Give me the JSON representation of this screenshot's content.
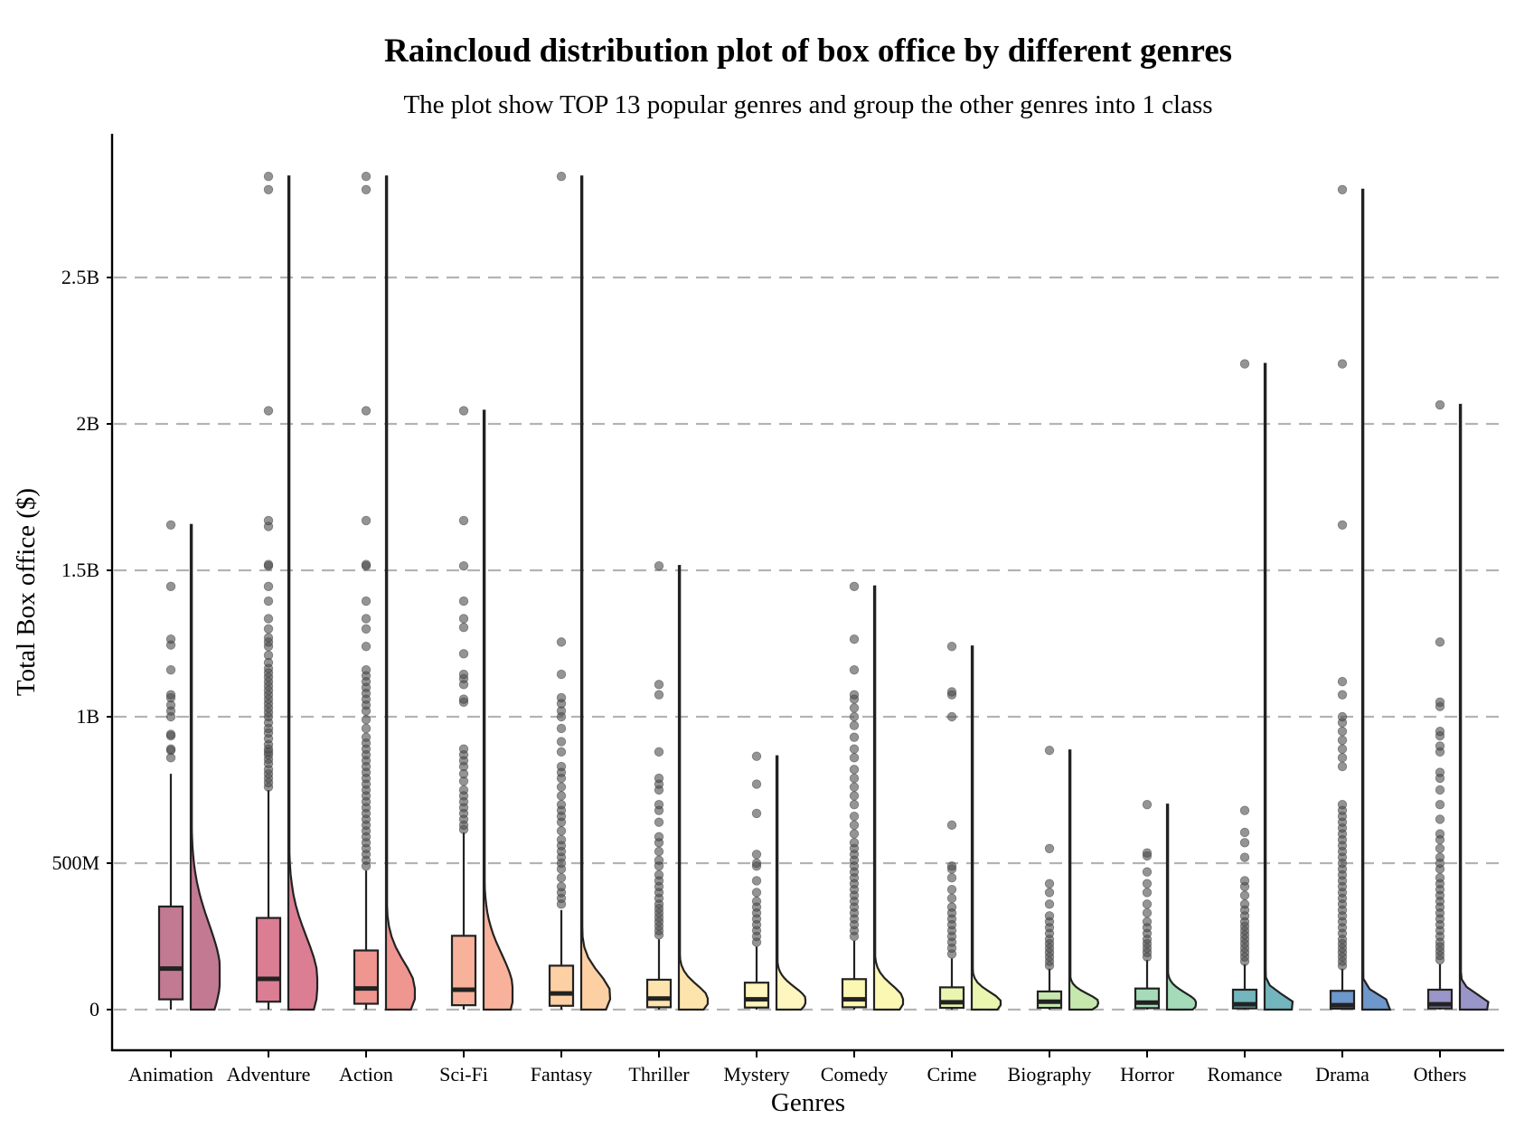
{
  "chart_data": {
    "type": "raincloud",
    "title": "Raincloud distribution plot of box office by different genres",
    "subtitle": "The plot show TOP 13 popular genres and group the other genres into 1 class",
    "xlabel": "Genres",
    "ylabel": "Total Box office ($)",
    "ylim": [
      -90000000,
      3000000000
    ],
    "y_ticks": [
      {
        "value": 0,
        "label": "0"
      },
      {
        "value": 500000000,
        "label": "500M"
      },
      {
        "value": 1000000000,
        "label": "1B"
      },
      {
        "value": 1500000000,
        "label": "1.5B"
      },
      {
        "value": 2000000000,
        "label": "2B"
      },
      {
        "value": 2500000000,
        "label": "2.5B"
      }
    ],
    "grid": "horizontal dashed",
    "legend": "none",
    "series": [
      {
        "name": "Animation",
        "color": "#c27a92",
        "box": {
          "q1": 35000000,
          "median": 140000000,
          "q3": 352000000,
          "whisker_low": 0,
          "whisker_high": 805000000
        },
        "max": 1655000000,
        "outliers": [
          860000000,
          885000000,
          890000000,
          935000000,
          940000000,
          1000000000,
          1020000000,
          1040000000,
          1065000000,
          1075000000,
          1160000000,
          1245000000,
          1265000000,
          1445000000,
          1655000000
        ]
      },
      {
        "name": "Adventure",
        "color": "#db7e93",
        "box": {
          "q1": 27000000,
          "median": 105000000,
          "q3": 313000000,
          "whisker_low": 0,
          "whisker_high": 750000000
        },
        "max": 2845000000,
        "outliers": [
          760000000,
          775000000,
          790000000,
          805000000,
          820000000,
          840000000,
          855000000,
          870000000,
          880000000,
          890000000,
          905000000,
          925000000,
          945000000,
          960000000,
          980000000,
          1000000000,
          1015000000,
          1030000000,
          1045000000,
          1060000000,
          1075000000,
          1090000000,
          1105000000,
          1120000000,
          1135000000,
          1150000000,
          1165000000,
          1185000000,
          1210000000,
          1240000000,
          1255000000,
          1270000000,
          1300000000,
          1335000000,
          1395000000,
          1445000000,
          1515000000,
          1520000000,
          1650000000,
          1670000000,
          2045000000,
          2800000000,
          2845000000
        ]
      },
      {
        "name": "Action",
        "color": "#ef9690",
        "box": {
          "q1": 20000000,
          "median": 72000000,
          "q3": 202000000,
          "whisker_low": 0,
          "whisker_high": 475000000
        },
        "max": 2845000000,
        "outliers": [
          490000000,
          510000000,
          530000000,
          550000000,
          570000000,
          590000000,
          610000000,
          630000000,
          650000000,
          670000000,
          690000000,
          710000000,
          730000000,
          750000000,
          770000000,
          790000000,
          810000000,
          830000000,
          850000000,
          870000000,
          890000000,
          910000000,
          930000000,
          960000000,
          990000000,
          1020000000,
          1040000000,
          1060000000,
          1080000000,
          1100000000,
          1120000000,
          1140000000,
          1160000000,
          1240000000,
          1300000000,
          1335000000,
          1395000000,
          1515000000,
          1520000000,
          1670000000,
          2045000000,
          2800000000,
          2845000000
        ]
      },
      {
        "name": "Sci-Fi",
        "color": "#f8b29c",
        "box": {
          "q1": 15000000,
          "median": 68000000,
          "q3": 252000000,
          "whisker_low": 0,
          "whisker_high": 605000000
        },
        "max": 2045000000,
        "outliers": [
          615000000,
          630000000,
          650000000,
          670000000,
          690000000,
          710000000,
          730000000,
          750000000,
          780000000,
          805000000,
          830000000,
          850000000,
          870000000,
          890000000,
          1050000000,
          1060000000,
          1110000000,
          1130000000,
          1145000000,
          1215000000,
          1305000000,
          1335000000,
          1395000000,
          1515000000,
          1670000000,
          2045000000
        ]
      },
      {
        "name": "Fantasy",
        "color": "#fdd0a3",
        "box": {
          "q1": 13000000,
          "median": 55000000,
          "q3": 150000000,
          "whisker_low": 0,
          "whisker_high": 340000000
        },
        "max": 2845000000,
        "outliers": [
          360000000,
          380000000,
          400000000,
          420000000,
          450000000,
          480000000,
          500000000,
          520000000,
          540000000,
          560000000,
          580000000,
          610000000,
          640000000,
          660000000,
          680000000,
          700000000,
          730000000,
          760000000,
          790000000,
          810000000,
          830000000,
          880000000,
          915000000,
          960000000,
          1000000000,
          1020000000,
          1045000000,
          1065000000,
          1145000000,
          1255000000,
          2845000000
        ]
      },
      {
        "name": "Thriller",
        "color": "#fde4ad",
        "box": {
          "q1": 8000000,
          "median": 38000000,
          "q3": 102000000,
          "whisker_low": 0,
          "whisker_high": 240000000
        },
        "max": 1515000000,
        "outliers": [
          255000000,
          270000000,
          285000000,
          300000000,
          315000000,
          330000000,
          345000000,
          360000000,
          380000000,
          400000000,
          420000000,
          440000000,
          460000000,
          490000000,
          510000000,
          540000000,
          570000000,
          590000000,
          640000000,
          680000000,
          700000000,
          750000000,
          770000000,
          790000000,
          880000000,
          1075000000,
          1110000000,
          1515000000
        ]
      },
      {
        "name": "Mystery",
        "color": "#fff5bf",
        "box": {
          "q1": 7000000,
          "median": 35000000,
          "q3": 92000000,
          "whisker_low": 0,
          "whisker_high": 215000000
        },
        "max": 865000000,
        "outliers": [
          230000000,
          250000000,
          270000000,
          290000000,
          310000000,
          330000000,
          350000000,
          370000000,
          400000000,
          440000000,
          490000000,
          500000000,
          530000000,
          670000000,
          770000000,
          865000000
        ]
      },
      {
        "name": "Comedy",
        "color": "#fbf8b4",
        "box": {
          "q1": 8000000,
          "median": 35000000,
          "q3": 104000000,
          "whisker_low": 0,
          "whisker_high": 235000000
        },
        "max": 1445000000,
        "outliers": [
          250000000,
          270000000,
          290000000,
          310000000,
          330000000,
          350000000,
          370000000,
          390000000,
          410000000,
          430000000,
          450000000,
          470000000,
          490000000,
          510000000,
          530000000,
          550000000,
          570000000,
          600000000,
          630000000,
          660000000,
          700000000,
          730000000,
          760000000,
          790000000,
          820000000,
          860000000,
          890000000,
          930000000,
          970000000,
          1000000000,
          1030000000,
          1060000000,
          1075000000,
          1160000000,
          1265000000,
          1445000000
        ]
      },
      {
        "name": "Crime",
        "color": "#eaf6b0",
        "box": {
          "q1": 6000000,
          "median": 25000000,
          "q3": 76000000,
          "whisker_low": 0,
          "whisker_high": 175000000
        },
        "max": 1240000000,
        "outliers": [
          190000000,
          210000000,
          230000000,
          250000000,
          270000000,
          290000000,
          310000000,
          330000000,
          350000000,
          380000000,
          410000000,
          450000000,
          480000000,
          490000000,
          630000000,
          1000000000,
          1075000000,
          1085000000,
          1240000000
        ]
      },
      {
        "name": "Biography",
        "color": "#c6e8ae",
        "box": {
          "q1": 6000000,
          "median": 27000000,
          "q3": 62000000,
          "whisker_low": 0,
          "whisker_high": 140000000
        },
        "max": 885000000,
        "outliers": [
          150000000,
          165000000,
          180000000,
          195000000,
          210000000,
          225000000,
          240000000,
          260000000,
          280000000,
          300000000,
          320000000,
          360000000,
          400000000,
          430000000,
          550000000,
          885000000
        ]
      },
      {
        "name": "Horror",
        "color": "#a5dbb8",
        "box": {
          "q1": 5000000,
          "median": 24000000,
          "q3": 72000000,
          "whisker_low": 0,
          "whisker_high": 170000000
        },
        "max": 700000000,
        "outliers": [
          180000000,
          195000000,
          210000000,
          225000000,
          240000000,
          260000000,
          280000000,
          300000000,
          330000000,
          360000000,
          400000000,
          430000000,
          470000000,
          525000000,
          535000000,
          700000000
        ]
      },
      {
        "name": "Romance",
        "color": "#73b5bc",
        "box": {
          "q1": 4000000,
          "median": 18000000,
          "q3": 68000000,
          "whisker_low": 0,
          "whisker_high": 155000000
        },
        "max": 2205000000,
        "outliers": [
          165000000,
          180000000,
          195000000,
          210000000,
          225000000,
          240000000,
          255000000,
          270000000,
          285000000,
          300000000,
          320000000,
          340000000,
          360000000,
          390000000,
          420000000,
          440000000,
          520000000,
          570000000,
          605000000,
          680000000,
          2205000000
        ]
      },
      {
        "name": "Drama",
        "color": "#6e97cb",
        "box": {
          "q1": 3000000,
          "median": 15000000,
          "q3": 64000000,
          "whisker_low": 0,
          "whisker_high": 140000000
        },
        "max": 2800000000,
        "outliers": [
          150000000,
          165000000,
          180000000,
          195000000,
          210000000,
          225000000,
          240000000,
          260000000,
          280000000,
          300000000,
          320000000,
          340000000,
          360000000,
          380000000,
          400000000,
          420000000,
          440000000,
          460000000,
          480000000,
          500000000,
          520000000,
          540000000,
          560000000,
          580000000,
          600000000,
          620000000,
          640000000,
          660000000,
          680000000,
          700000000,
          830000000,
          860000000,
          890000000,
          920000000,
          950000000,
          980000000,
          1000000000,
          1075000000,
          1120000000,
          1655000000,
          2205000000,
          2800000000
        ]
      },
      {
        "name": "Others",
        "color": "#9a95c8",
        "box": {
          "q1": 4000000,
          "median": 18000000,
          "q3": 68000000,
          "whisker_low": 0,
          "whisker_high": 155000000
        },
        "max": 2065000000,
        "outliers": [
          170000000,
          185000000,
          200000000,
          215000000,
          230000000,
          250000000,
          270000000,
          290000000,
          310000000,
          330000000,
          350000000,
          370000000,
          390000000,
          410000000,
          430000000,
          450000000,
          480000000,
          500000000,
          520000000,
          550000000,
          580000000,
          600000000,
          650000000,
          700000000,
          750000000,
          790000000,
          810000000,
          880000000,
          900000000,
          935000000,
          950000000,
          1035000000,
          1050000000,
          1255000000,
          2065000000
        ]
      }
    ]
  }
}
